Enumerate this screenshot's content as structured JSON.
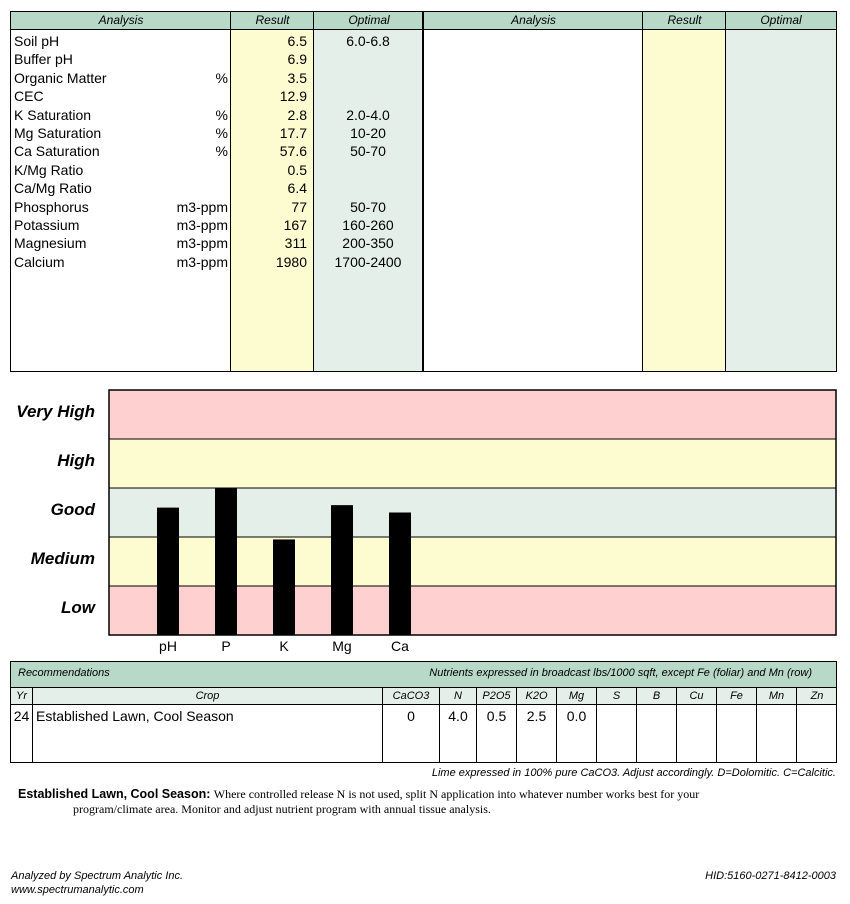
{
  "analysis_table": {
    "headers": {
      "analysis": "Analysis",
      "result": "Result",
      "optimal": "Optimal"
    },
    "rows": [
      {
        "name": "Soil pH",
        "unit": "",
        "result": "6.5",
        "optimal": "6.0-6.8"
      },
      {
        "name": "Buffer pH",
        "unit": "",
        "result": "6.9",
        "optimal": ""
      },
      {
        "name": "Organic Matter",
        "unit": "%",
        "result": "3.5",
        "optimal": ""
      },
      {
        "name": "CEC",
        "unit": "",
        "result": "12.9",
        "optimal": ""
      },
      {
        "name": "K Saturation",
        "unit": "%",
        "result": "2.8",
        "optimal": "2.0-4.0"
      },
      {
        "name": "Mg Saturation",
        "unit": "%",
        "result": "17.7",
        "optimal": "10-20"
      },
      {
        "name": "Ca Saturation",
        "unit": "%",
        "result": "57.6",
        "optimal": "50-70"
      },
      {
        "name": "K/Mg Ratio",
        "unit": "",
        "result": "0.5",
        "optimal": ""
      },
      {
        "name": "Ca/Mg Ratio",
        "unit": "",
        "result": "6.4",
        "optimal": ""
      },
      {
        "name": "Phosphorus",
        "unit": "m3-ppm",
        "result": "77",
        "optimal": "50-70"
      },
      {
        "name": "Potassium",
        "unit": "m3-ppm",
        "result": "167",
        "optimal": "160-260"
      },
      {
        "name": "Magnesium",
        "unit": "m3-ppm",
        "result": "311",
        "optimal": "200-350"
      },
      {
        "name": "Calcium",
        "unit": "m3-ppm",
        "result": "1980",
        "optimal": "1700-2400"
      }
    ]
  },
  "chart_data": {
    "type": "bar",
    "levels": [
      "Low",
      "Medium",
      "Good",
      "High",
      "Very High"
    ],
    "level_labels_top_down": [
      "Very High",
      "High",
      "Good",
      "Medium",
      "Low"
    ],
    "band_colors": [
      "#ffd0d0",
      "#fdfbd0",
      "#e4efea",
      "#fdfbd0",
      "#ffd0d0"
    ],
    "categories": [
      "pH",
      "P",
      "K",
      "Mg",
      "Ca"
    ],
    "values": [
      2.6,
      3.0,
      1.95,
      2.65,
      2.5
    ],
    "ylim": [
      0,
      5
    ],
    "bar_color": "#000000"
  },
  "recommendations": {
    "title": "Recommendations",
    "note": "Nutrients expressed in broadcast lbs/1000 sqft, except Fe (foliar) and Mn (row)",
    "columns": [
      "Yr",
      "Crop",
      "CaCO3",
      "N",
      "P2O5",
      "K2O",
      "Mg",
      "S",
      "B",
      "Cu",
      "Fe",
      "Mn",
      "Zn"
    ],
    "rows": [
      {
        "yr": "24",
        "crop": "Established Lawn, Cool Season",
        "caco3": "0",
        "n": "4.0",
        "p2o5": "0.5",
        "k2o": "2.5",
        "mg": "0.0",
        "s": "",
        "b": "",
        "cu": "",
        "fe": "",
        "mn": "",
        "zn": ""
      }
    ]
  },
  "lime_note": "Lime expressed in 100% pure CaCO3.  Adjust accordingly.  D=Dolomitic.  C=Calcitic.",
  "crop_note": {
    "title": "Established Lawn, Cool Season:",
    "text_line1": "Where controlled release N is not used, split N application into whatever number works best for your",
    "text_line2": "program/climate area. Monitor and adjust nutrient program with annual tissue analysis."
  },
  "footer": {
    "analyzed_by": "Analyzed by Spectrum Analytic Inc.",
    "website": "www.spectrumanalytic.com",
    "hid": "HID:5160-0271-8412-0003"
  }
}
